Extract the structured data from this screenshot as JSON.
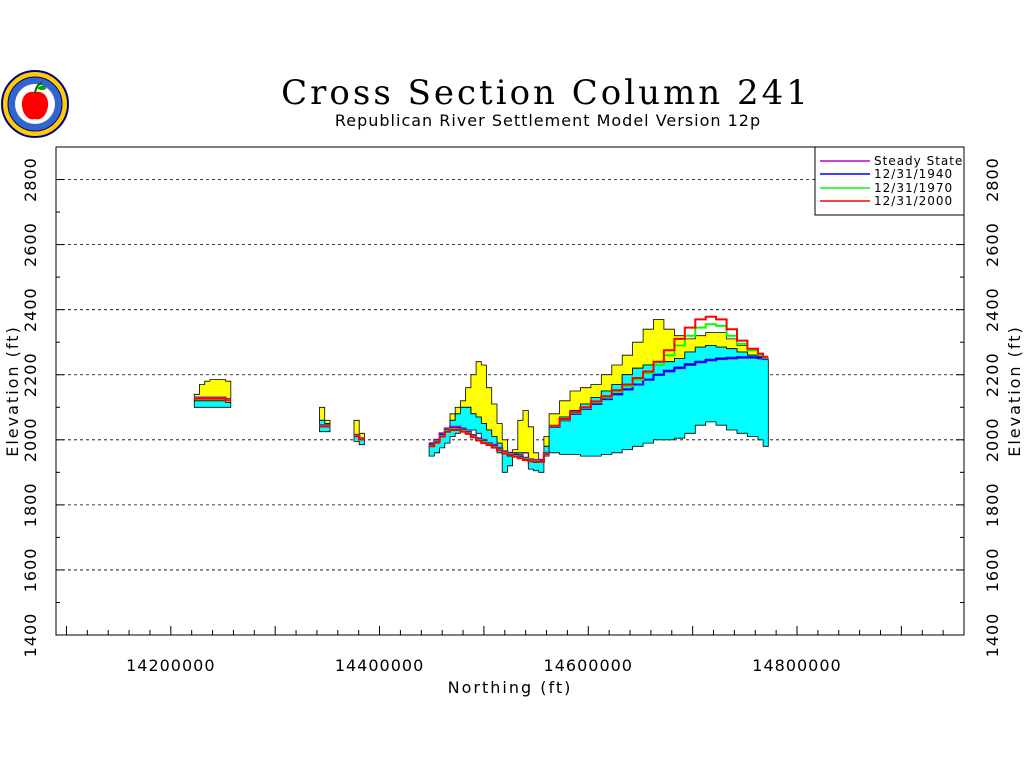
{
  "chart_data": {
    "type": "area",
    "title": "Cross Section Column 241",
    "subtitle": "Republican River Settlement Model Version 12p",
    "xlabel": "Northing (ft)",
    "ylabel": "Elevation (ft)",
    "xlim": [
      14090000,
      14960000
    ],
    "ylim": [
      1400,
      2900
    ],
    "x_ticks": [
      14200000,
      14400000,
      14600000,
      14800000
    ],
    "x_tick_labels": [
      "14200000",
      "14400000",
      "14600000",
      "14800000"
    ],
    "y_ticks": [
      1400,
      1600,
      1800,
      2000,
      2200,
      2400,
      2600,
      2800
    ],
    "y_tick_labels": [
      "1400",
      "1600",
      "1800",
      "2000",
      "2200",
      "2400",
      "2600",
      "2800"
    ],
    "grid": "horizontal-dashed",
    "legend_position": "top-right",
    "colors": {
      "land_surface_fill": "#ffff00",
      "saturated_fill": "#00ffff",
      "steady_state": "#c000c0",
      "y1940": "#0000ff",
      "y1970": "#00ff00",
      "y2000": "#ff0000"
    },
    "series": [
      {
        "name": "Steady State",
        "color": "#c000c0"
      },
      {
        "name": "12/31/1940",
        "color": "#0000ff"
      },
      {
        "name": "12/31/1970",
        "color": "#00ff00"
      },
      {
        "name": "12/31/2000",
        "color": "#ff0000"
      }
    ],
    "segments": [
      {
        "x": [
          14225000,
          14230000,
          14235000,
          14240000,
          14245000,
          14250000,
          14255000
        ],
        "top": [
          2140,
          2170,
          2180,
          2185,
          2185,
          2185,
          2180
        ],
        "bottom": [
          2100,
          2100,
          2100,
          2100,
          2100,
          2100,
          2100
        ],
        "sat_top": [
          2120,
          2120,
          2120,
          2120,
          2120,
          2120,
          2115
        ],
        "ss": [
          2130,
          2130,
          2130,
          2130,
          2130,
          2130,
          2125
        ],
        "y1940": [
          2128,
          2128,
          2128,
          2128,
          2128,
          2128,
          2123
        ],
        "y1970": [
          2127,
          2127,
          2127,
          2127,
          2127,
          2127,
          2122
        ],
        "y2000": [
          2126,
          2126,
          2126,
          2126,
          2126,
          2126,
          2121
        ]
      },
      {
        "x": [
          14345000,
          14350000
        ],
        "top": [
          2100,
          2060
        ],
        "bottom": [
          2025,
          2025
        ],
        "sat_top": [
          2060,
          2050
        ],
        "ss": [
          2045,
          2045
        ],
        "y1940": [
          2043,
          2043
        ],
        "y1970": [
          2042,
          2042
        ],
        "y2000": [
          2041,
          2041
        ]
      },
      {
        "x": [
          14378000,
          14383000
        ],
        "top": [
          2060,
          2020
        ],
        "bottom": [
          1995,
          1985
        ],
        "sat_top": [
          2010,
          2005
        ],
        "ss": [
          2015,
          2005
        ],
        "y1940": [
          2013,
          2003
        ],
        "y1970": [
          2012,
          2002
        ],
        "y2000": [
          2011,
          2001
        ]
      },
      {
        "x": [
          14450000,
          14455000,
          14460000,
          14465000,
          14470000,
          14475000,
          14480000,
          14485000,
          14490000,
          14495000,
          14500000,
          14505000,
          14510000,
          14515000,
          14520000,
          14525000,
          14530000,
          14535000,
          14540000,
          14545000,
          14550000,
          14555000,
          14560000
        ],
        "top": [
          1990,
          2000,
          2020,
          2030,
          2080,
          2100,
          2120,
          2160,
          2200,
          2240,
          2230,
          2160,
          2110,
          2050,
          2000,
          1960,
          1970,
          2060,
          2090,
          2040,
          1960,
          1940,
          2010
        ],
        "bottom": [
          1950,
          1960,
          1975,
          1990,
          2010,
          2020,
          2030,
          2030,
          2030,
          2020,
          2000,
          1990,
          1980,
          1960,
          1900,
          1920,
          1950,
          1955,
          1960,
          1910,
          1905,
          1900,
          1950
        ],
        "sat_top": [
          1980,
          1990,
          2010,
          2030,
          2060,
          2080,
          2100,
          2100,
          2080,
          2070,
          2050,
          2030,
          2010,
          1990,
          1960,
          1950,
          1960,
          1960,
          1960,
          1940,
          1930,
          1935,
          1980
        ],
        "ss": [
          1990,
          2000,
          2020,
          2035,
          2040,
          2040,
          2035,
          2025,
          2015,
          2005,
          2000,
          1990,
          1985,
          1975,
          1965,
          1960,
          1955,
          1950,
          1945,
          1940,
          1938,
          1937,
          1960
        ],
        "y1940": [
          1985,
          1998,
          2015,
          2030,
          2035,
          2035,
          2030,
          2022,
          2012,
          2002,
          1995,
          1988,
          1980,
          1972,
          1962,
          1958,
          1952,
          1947,
          1942,
          1937,
          1935,
          1934,
          1958
        ],
        "y1970": [
          1982,
          1995,
          2012,
          2028,
          2033,
          2032,
          2028,
          2020,
          2010,
          2000,
          1993,
          1986,
          1978,
          1970,
          1960,
          1956,
          1950,
          1945,
          1940,
          1936,
          1934,
          1933,
          1957
        ],
        "y2000": [
          1980,
          1993,
          2010,
          2025,
          2030,
          2030,
          2025,
          2018,
          2008,
          1998,
          1990,
          1984,
          1976,
          1968,
          1958,
          1954,
          1948,
          1943,
          1938,
          1934,
          1932,
          1932,
          1956
        ]
      },
      {
        "x": [
          14565000,
          14575000,
          14585000,
          14595000,
          14605000,
          14615000,
          14625000,
          14635000,
          14645000,
          14655000,
          14665000,
          14675000,
          14685000,
          14695000,
          14705000,
          14715000,
          14725000,
          14735000,
          14745000,
          14755000,
          14765000,
          14770000
        ],
        "top": [
          2080,
          2120,
          2150,
          2160,
          2170,
          2200,
          2230,
          2260,
          2300,
          2340,
          2370,
          2340,
          2320,
          2310,
          2320,
          2330,
          2330,
          2310,
          2290,
          2280,
          2260,
          2250
        ],
        "bottom": [
          1960,
          1955,
          1955,
          1950,
          1950,
          1955,
          1960,
          1970,
          1980,
          1990,
          2000,
          2000,
          2005,
          2020,
          2045,
          2055,
          2045,
          2030,
          2020,
          2010,
          2000,
          1980
        ],
        "sat_top": [
          2040,
          2070,
          2090,
          2110,
          2130,
          2150,
          2170,
          2200,
          2220,
          2230,
          2240,
          2240,
          2250,
          2270,
          2285,
          2290,
          2285,
          2280,
          2270,
          2260,
          2255,
          2250
        ],
        "ss": [
          2040,
          2060,
          2080,
          2095,
          2110,
          2125,
          2140,
          2155,
          2170,
          2185,
          2200,
          2210,
          2220,
          2230,
          2238,
          2244,
          2248,
          2250,
          2252,
          2252,
          2250,
          2248
        ],
        "y1940": [
          2040,
          2060,
          2080,
          2095,
          2110,
          2125,
          2140,
          2155,
          2170,
          2185,
          2200,
          2212,
          2222,
          2232,
          2240,
          2246,
          2250,
          2252,
          2254,
          2254,
          2252,
          2250
        ],
        "y1970": [
          2042,
          2062,
          2083,
          2098,
          2115,
          2130,
          2148,
          2165,
          2185,
          2205,
          2230,
          2260,
          2290,
          2320,
          2345,
          2355,
          2350,
          2320,
          2295,
          2275,
          2262,
          2252
        ],
        "y2000": [
          2043,
          2064,
          2085,
          2100,
          2118,
          2134,
          2152,
          2170,
          2190,
          2210,
          2240,
          2275,
          2310,
          2345,
          2370,
          2378,
          2370,
          2340,
          2305,
          2280,
          2265,
          2255
        ]
      }
    ]
  },
  "logo": {
    "name": "nebraska-seal"
  }
}
